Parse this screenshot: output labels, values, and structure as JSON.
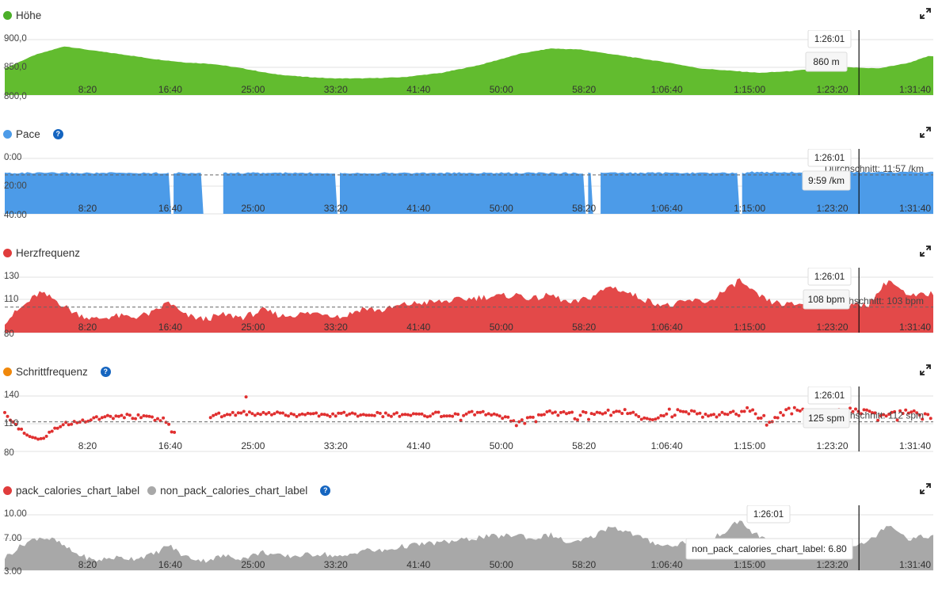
{
  "cursor_time": "1:26:01",
  "x_ticks": [
    "8:20",
    "16:40",
    "25:00",
    "33:20",
    "41:40",
    "50:00",
    "58:20",
    "1:06:40",
    "1:15:00",
    "1:23:20",
    "1:31:40"
  ],
  "colors": {
    "green": "#62bc2f",
    "blue": "#4c9be8",
    "red": "#e03c3c",
    "orange": "#f0880b",
    "gray": "#a8a8a8",
    "help": "#1565c0"
  },
  "chart_data": [
    {
      "type": "area",
      "id": "hoehe",
      "legend": [
        {
          "label": "Höhe",
          "color": "#4caf29"
        }
      ],
      "help": false,
      "yticks": [
        "900,0",
        "850,0",
        "800,0"
      ],
      "ylim": [
        800,
        900
      ],
      "color": "#62bc2f",
      "series_time_min": [
        0,
        3,
        6,
        9,
        12,
        15,
        18,
        21,
        24,
        27,
        30,
        33,
        36,
        40,
        44,
        48,
        52,
        55,
        58,
        61,
        64,
        67,
        70,
        73,
        76,
        79,
        82,
        85,
        88,
        91,
        93
      ],
      "values": [
        848,
        872,
        888,
        880,
        873,
        865,
        859,
        856,
        848,
        838,
        833,
        830,
        830,
        832,
        840,
        855,
        875,
        884,
        882,
        874,
        866,
        858,
        848,
        844,
        840,
        843,
        848,
        850,
        848,
        858,
        870
      ],
      "tooltip": {
        "time": "1:26:01",
        "value": "860 m"
      }
    },
    {
      "type": "area",
      "id": "pace",
      "legend": [
        {
          "label": "Pace",
          "color": "#4c9be8"
        }
      ],
      "help": true,
      "yticks": [
        "0:00",
        "20:00",
        "40:00"
      ],
      "ylim": [
        0,
        40
      ],
      "color": "#4c9be8",
      "average_label": "Durchschnitt: 11:57 /km",
      "average": 11.95,
      "approx_value_min_per_km": 10.5,
      "tooltip": {
        "time": "1:26:01",
        "value": "9:59 /km"
      }
    },
    {
      "type": "area",
      "id": "herzfrequenz",
      "legend": [
        {
          "label": "Herzfrequenz",
          "color": "#e03c3c"
        }
      ],
      "help": false,
      "yticks": [
        "130",
        "110",
        "80"
      ],
      "ylim": [
        80,
        130
      ],
      "color": "#e34949",
      "average_label": "Durchschnitt: 103 bpm",
      "average": 103,
      "series_time_min": [
        0,
        2,
        3.5,
        5,
        7,
        9,
        11,
        13,
        15,
        16.5,
        18,
        20,
        22,
        24,
        26,
        28,
        30,
        32,
        34,
        36,
        38,
        40,
        42,
        44,
        46,
        48,
        50,
        52,
        53,
        55,
        57,
        59,
        61,
        63,
        65,
        67,
        69,
        71,
        72,
        73,
        74,
        75,
        77,
        79,
        81,
        83,
        85,
        87,
        89,
        91,
        93
      ],
      "values": [
        90,
        105,
        116,
        110,
        98,
        92,
        95,
        94,
        98,
        108,
        96,
        92,
        96,
        94,
        100,
        95,
        97,
        98,
        94,
        102,
        100,
        105,
        107,
        108,
        110,
        112,
        113,
        114,
        110,
        114,
        106,
        112,
        122,
        115,
        108,
        104,
        109,
        108,
        115,
        120,
        128,
        118,
        108,
        105,
        107,
        106,
        104,
        106,
        128,
        112,
        115
      ],
      "tooltip": {
        "time": "1:26:01",
        "value": "108 bpm"
      }
    },
    {
      "type": "scatter",
      "id": "schrittfrequenz",
      "legend": [
        {
          "label": "Schrittfrequenz",
          "color": "#f0880b"
        }
      ],
      "help": true,
      "yticks": [
        "140",
        "110",
        "80"
      ],
      "ylim": [
        80,
        140
      ],
      "color": "#e03030",
      "average_label": "Durchschnitt: 112 spm",
      "average": 112,
      "series_time_min": [
        0,
        1,
        2,
        3,
        4,
        5,
        6,
        8,
        10,
        12,
        14,
        16,
        16.5,
        17,
        18,
        20,
        22,
        24,
        26,
        28,
        30,
        35,
        40,
        45,
        48,
        50,
        51,
        53,
        55,
        57,
        59,
        61,
        63,
        65,
        67,
        69,
        71,
        73,
        75,
        77,
        79,
        81,
        83,
        85,
        87,
        89,
        91,
        93
      ],
      "values": [
        120,
        110,
        100,
        93,
        95,
        103,
        110,
        113,
        117,
        119,
        117,
        115,
        108,
        100,
        112,
        116,
        120,
        122,
        121,
        120,
        120,
        120,
        120,
        120,
        121,
        118,
        113,
        117,
        122,
        122,
        121,
        124,
        123,
        115,
        124,
        122,
        118,
        121,
        126,
        113,
        126,
        123,
        122,
        125,
        122,
        120,
        123,
        118
      ],
      "tooltip": {
        "time": "1:26:01",
        "value": "125 spm"
      }
    },
    {
      "type": "area",
      "id": "kalorien",
      "legend": [
        {
          "label": "pack_calories_chart_label",
          "color": "#e03c3c"
        },
        {
          "label": "non_pack_calories_chart_label",
          "color": "#a8a8a8"
        }
      ],
      "help": true,
      "yticks": [
        "10.00",
        "7.00",
        "3.00"
      ],
      "ylim": [
        3,
        10
      ],
      "color": "#a8a8a8",
      "series_time_min": [
        0,
        2,
        3.5,
        5,
        7,
        9,
        11,
        13,
        15,
        16.5,
        18,
        20,
        22,
        24,
        26,
        28,
        30,
        32,
        34,
        36,
        38,
        40,
        42,
        44,
        46,
        48,
        50,
        52,
        53,
        55,
        57,
        59,
        61,
        63,
        65,
        67,
        69,
        71,
        72,
        73,
        74,
        75,
        77,
        79,
        81,
        83,
        85,
        87,
        89,
        91,
        93
      ],
      "values": [
        4.6,
        6.4,
        7.2,
        6.8,
        5.2,
        4.2,
        4.6,
        4.5,
        5.0,
        6.2,
        4.8,
        4.2,
        4.8,
        4.5,
        5.3,
        4.7,
        4.9,
        5.1,
        4.6,
        5.6,
        5.4,
        6.0,
        6.3,
        6.5,
        6.8,
        7.2,
        7.3,
        7.5,
        6.9,
        7.5,
        6.3,
        7.1,
        8.6,
        7.7,
        6.6,
        6.0,
        6.8,
        6.6,
        7.6,
        8.2,
        9.4,
        8.0,
        6.6,
        6.3,
        6.6,
        6.5,
        6.2,
        6.6,
        8.9,
        7.0,
        7.3
      ],
      "tooltip": {
        "time": "1:26:01",
        "value": "non_pack_calories_chart_label: 6.80"
      }
    }
  ]
}
